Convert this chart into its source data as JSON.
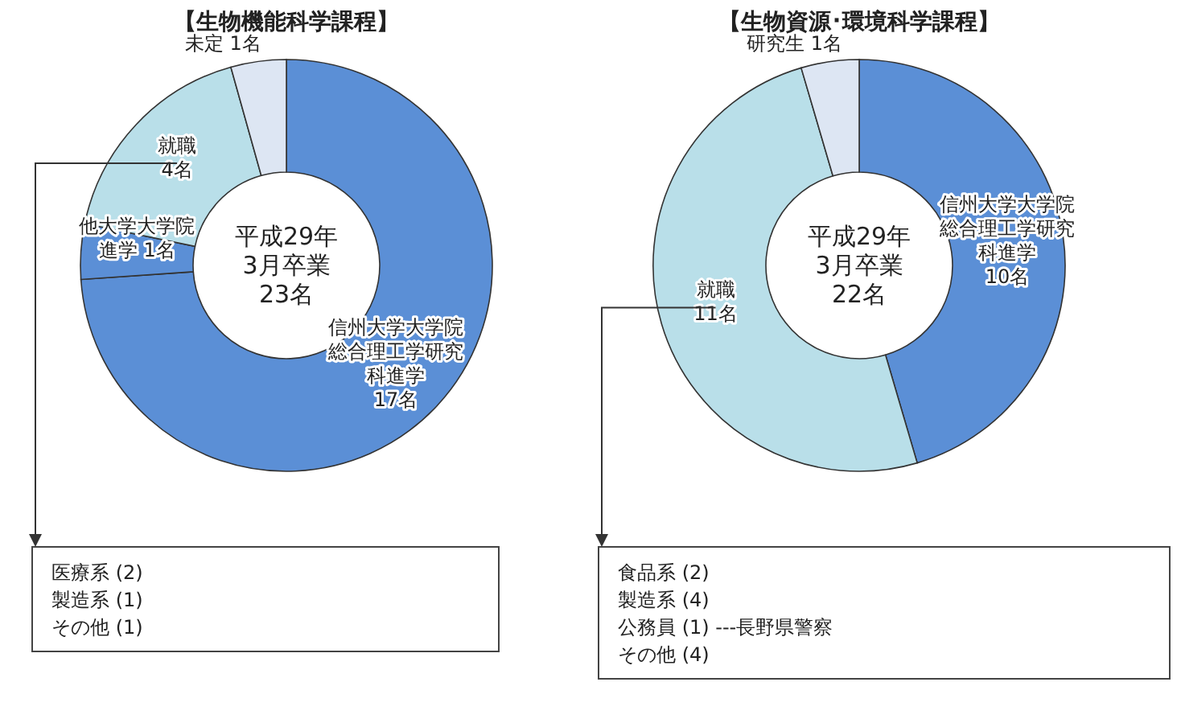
{
  "chart_data": [
    {
      "type": "donut",
      "title": "【生物機能科学課程】",
      "categories": [
        "信州大学大学院総合理工学研究科進学",
        "他大学大学院進学",
        "就職",
        "未定"
      ],
      "values": [
        17,
        1,
        4,
        1
      ],
      "value_labels": [
        "17名",
        "1名",
        "4名",
        "1名"
      ],
      "colors": [
        "#5b8fd6",
        "#5b8fd6",
        "#b9dfe9",
        "#dde6f3"
      ],
      "annotations": [
        "平成29年\n3月卒業\n23名",
        "医療系 (2)",
        "製造系 (1)",
        "その他 (1)"
      ]
    },
    {
      "type": "donut",
      "title": "【生物資源･環境科学課程】",
      "categories": [
        "信州大学大学院総合理工学研究科進学",
        "就職",
        "研究生"
      ],
      "values": [
        10,
        11,
        1
      ],
      "value_labels": [
        "10名",
        "11名",
        "1名"
      ],
      "colors": [
        "#5b8fd6",
        "#b9dfe9",
        "#dde6f3"
      ],
      "annotations": [
        "平成29年\n3月卒業\n22名",
        "食品系 (2)",
        "製造系 (4)",
        "公務員 (1) ---長野県警察",
        "その他 (4)"
      ]
    }
  ]
}
